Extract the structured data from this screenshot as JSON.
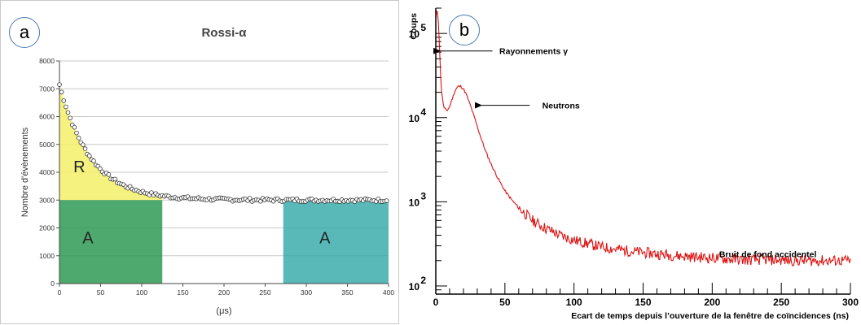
{
  "colors": {
    "accent_badge": "#4a7ab0",
    "region_r": "#f5f06a",
    "region_a_left": "#2f9a55",
    "region_a_right": "#30a8a8",
    "curve_b": "#dd1111"
  },
  "chart_data": [
    {
      "panel_label": "a",
      "type": "scatter",
      "title": "Rossi-α",
      "xlabel": "(μs)",
      "ylabel": "Nombre d'évènements",
      "xlim": [
        0,
        400
      ],
      "ylim": [
        0,
        8000
      ],
      "xticks": [
        "0",
        "50",
        "100",
        "150",
        "200",
        "250",
        "300",
        "350",
        "400"
      ],
      "yticks": [
        "0",
        "1000",
        "2000",
        "3000",
        "4000",
        "5000",
        "6000",
        "7000",
        "8000"
      ],
      "grid": true,
      "model": {
        "baseline": 3000,
        "amplitude": 4150,
        "decay_us": 38
      },
      "regions": [
        {
          "label": "R",
          "x": [
            0,
            125
          ],
          "fill": "between curve and baseline"
        },
        {
          "label": "A",
          "x": [
            0,
            125
          ],
          "y": [
            0,
            3000
          ]
        },
        {
          "label": "A",
          "x": [
            272,
            400
          ],
          "y": [
            0,
            3000
          ]
        }
      ]
    },
    {
      "panel_label": "b",
      "type": "line",
      "xlabel": "Ecart de temps depuis l’ouverture de la fenêtre de coïncidences (ns)",
      "ylabel": "Coups",
      "xlim": [
        0,
        300
      ],
      "ylim": [
        80,
        200000
      ],
      "yscale": "log",
      "xticks": [
        "0",
        "50",
        "100",
        "150",
        "200",
        "250",
        "300"
      ],
      "yticks": [
        {
          "base": "10",
          "exp": "2",
          "value": 100
        },
        {
          "base": "10",
          "exp": "3",
          "value": 1000
        },
        {
          "base": "10",
          "exp": "4",
          "value": 10000
        },
        {
          "base": "10",
          "exp": "5",
          "value": 100000
        }
      ],
      "series": [
        {
          "x": [
            0,
            1,
            2,
            3,
            4,
            5,
            6,
            7,
            8,
            10,
            12,
            14,
            16,
            18,
            20,
            22,
            25,
            28,
            32,
            36,
            40,
            45,
            50,
            55,
            60,
            70,
            80,
            90,
            100,
            120,
            140,
            160,
            180,
            200,
            220,
            240,
            260,
            280,
            300
          ],
          "y": [
            150000,
            200000,
            130000,
            50000,
            22000,
            16000,
            13000,
            12500,
            12000,
            13500,
            17000,
            21000,
            23500,
            23500,
            22000,
            19000,
            14000,
            10000,
            6200,
            4000,
            2800,
            1900,
            1350,
            1050,
            850,
            600,
            480,
            400,
            350,
            290,
            260,
            240,
            225,
            215,
            205,
            205,
            200,
            200,
            200
          ]
        }
      ],
      "annotations": [
        {
          "text": "Rayonnements γ",
          "x": 3,
          "y": 62000
        },
        {
          "text": "Neutrons",
          "x": 33,
          "y": 14000
        },
        {
          "text": "Bruit de fond accidentel",
          "x": 205,
          "y": 240
        }
      ]
    }
  ]
}
